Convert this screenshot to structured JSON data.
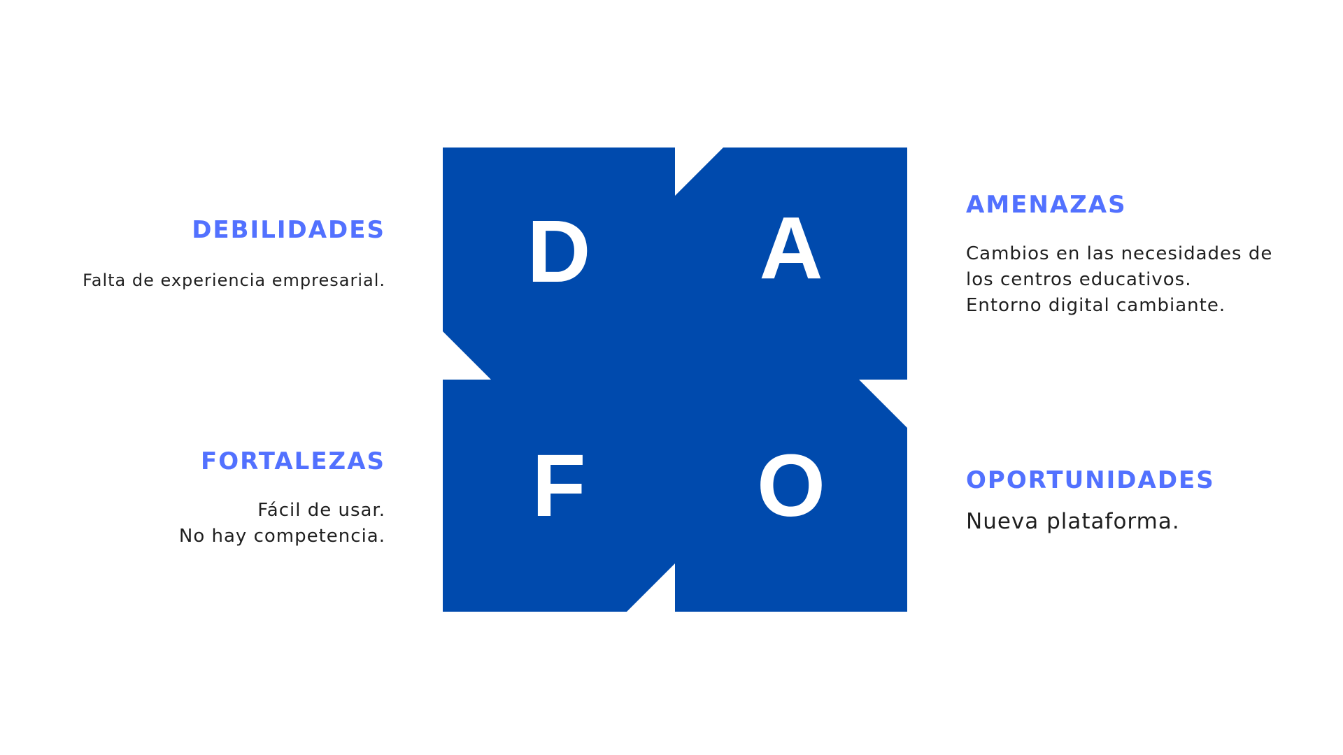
{
  "colors": {
    "block": "#004aad",
    "heading": "#5271ff",
    "text": "#1f1f1f",
    "letter": "#ffffff",
    "background": "#ffffff"
  },
  "quadrants": {
    "debilidades": {
      "letter": "D",
      "title": "DEBILIDADES",
      "lines": [
        "Falta de experiencia empresarial."
      ]
    },
    "amenazas": {
      "letter": "A",
      "title": "AMENAZAS",
      "lines": [
        "Cambios en las necesidades de",
        "los centros educativos.",
        "Entorno digital cambiante."
      ]
    },
    "fortalezas": {
      "letter": "F",
      "title": "FORTALEZAS",
      "lines": [
        "Fácil de usar.",
        "No hay competencia."
      ]
    },
    "oportunidades": {
      "letter": "O",
      "title": "OPORTUNIDADES",
      "lines": [
        "Nueva plataforma."
      ]
    }
  }
}
